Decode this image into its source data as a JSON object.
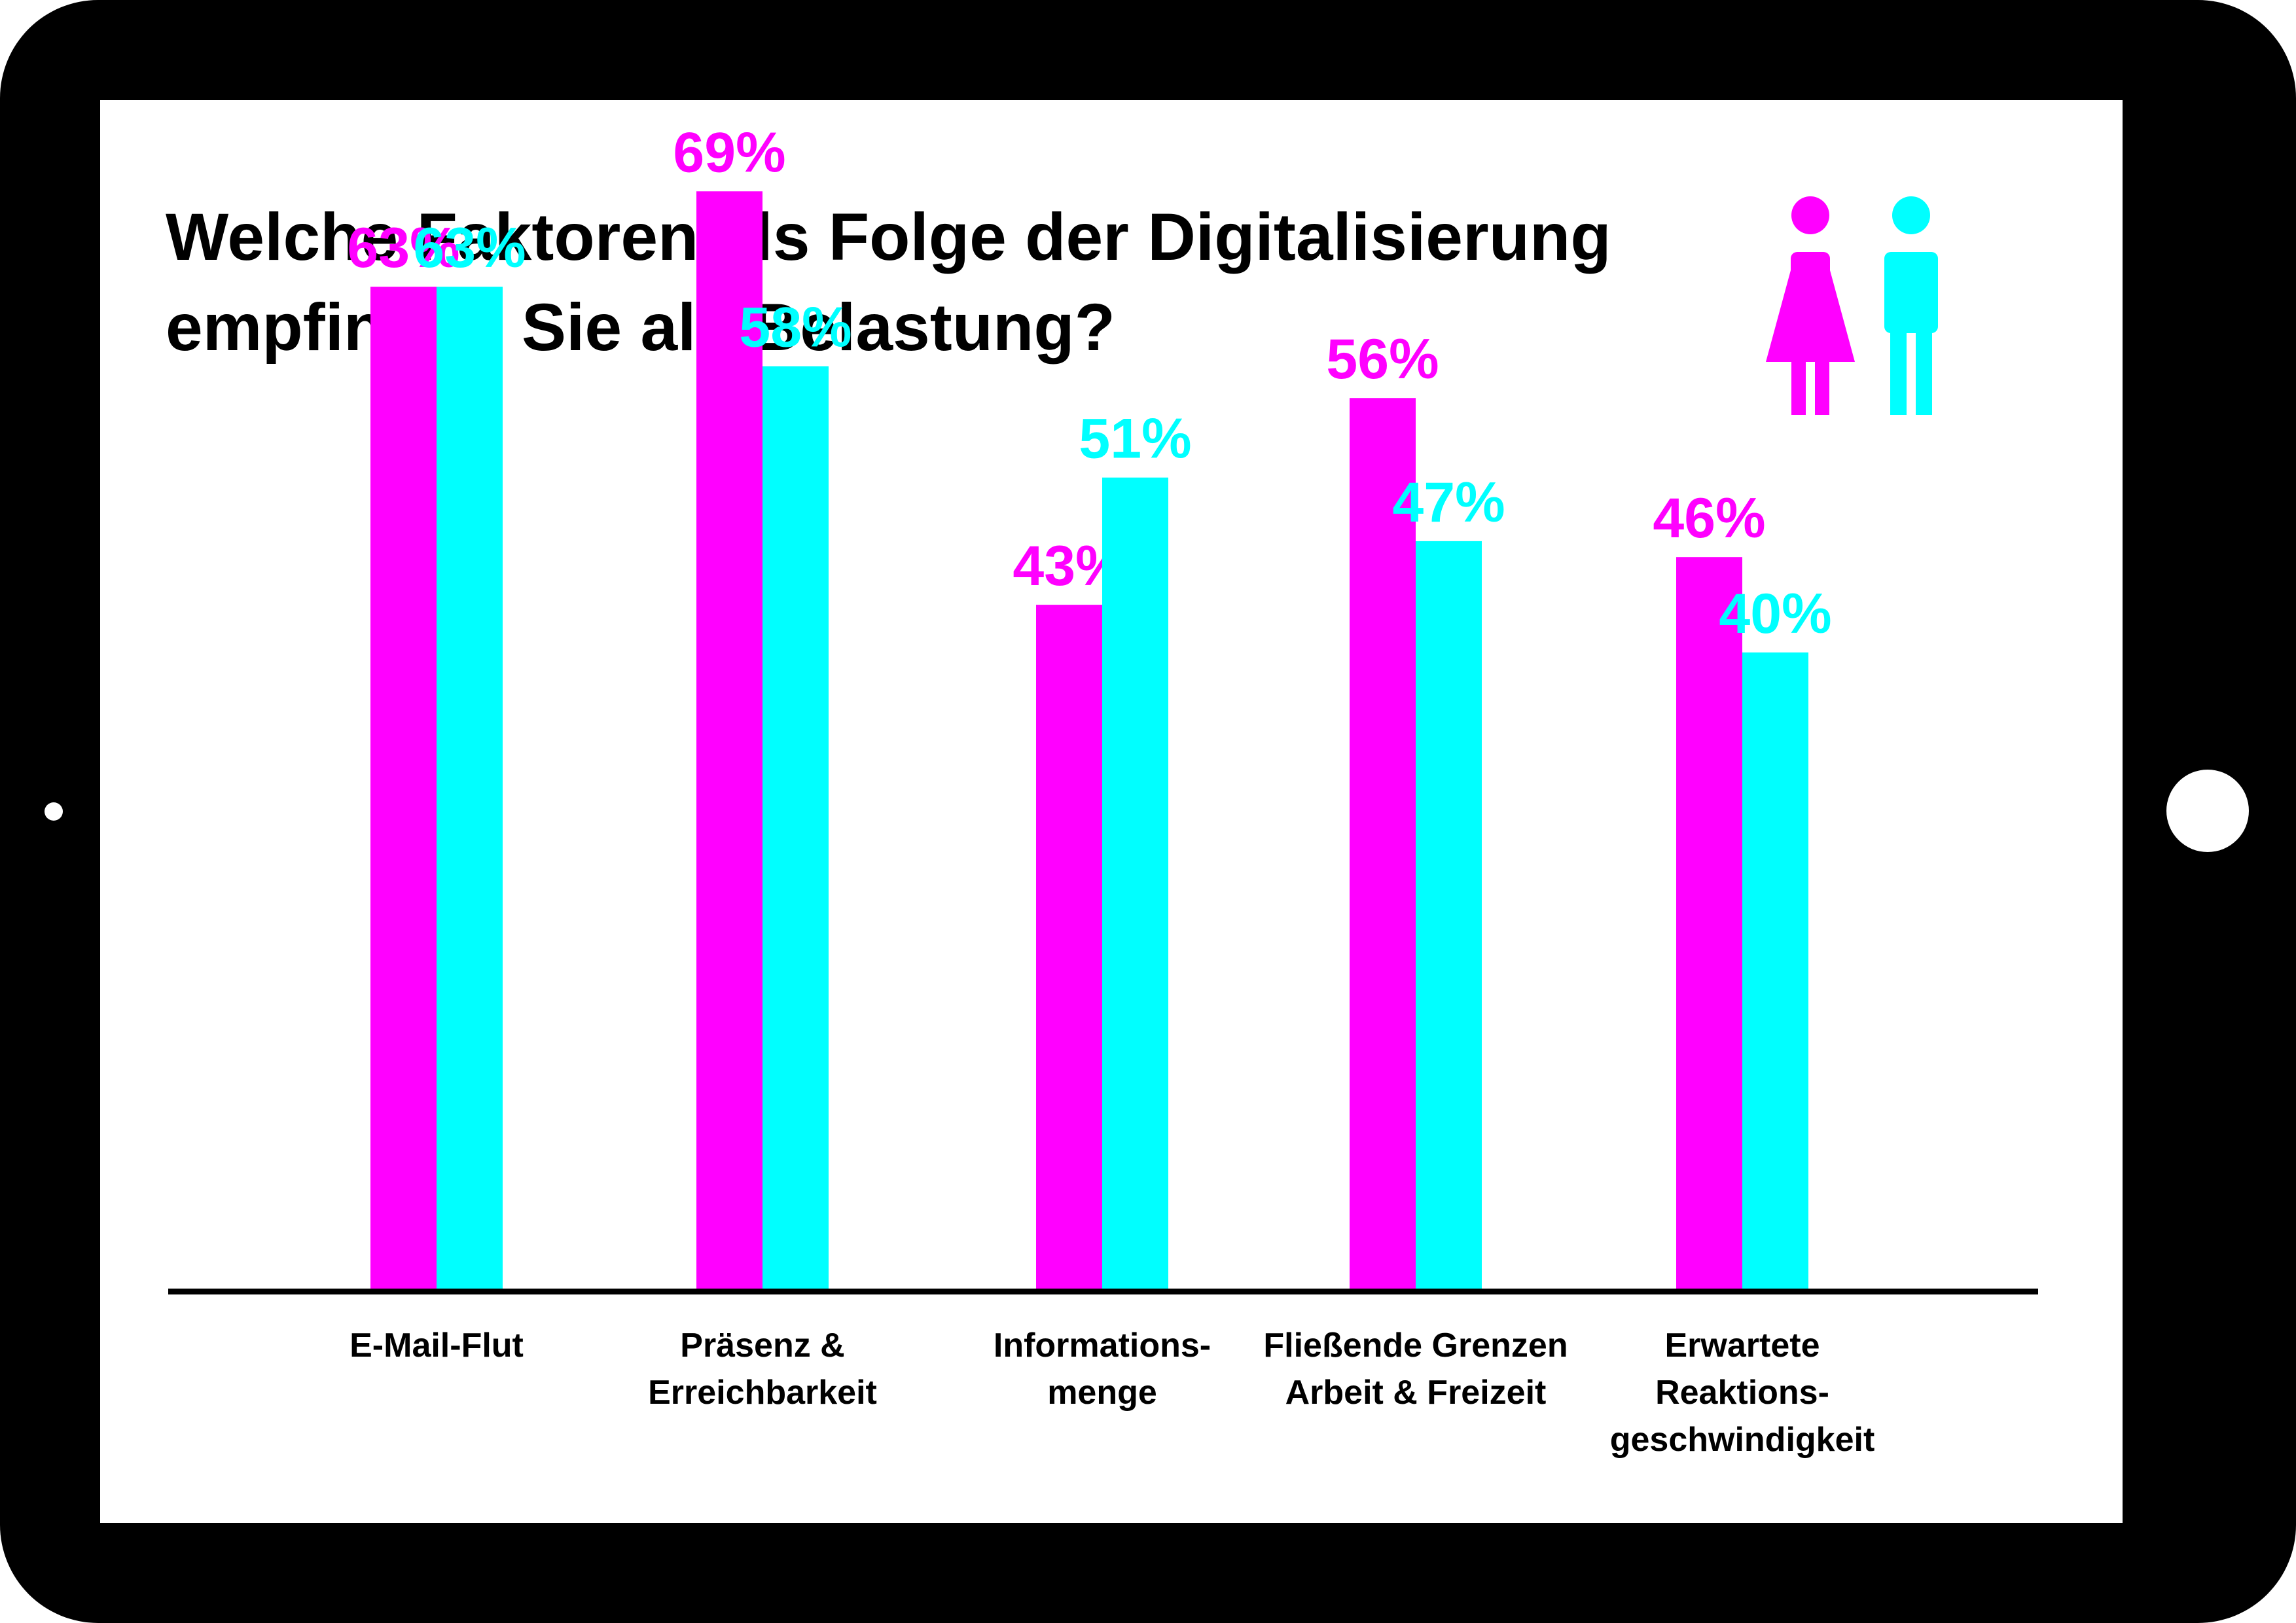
{
  "colors": {
    "frame": "#000000",
    "screen": "#ffffff",
    "female": "#ff00ff",
    "male": "#00ffff",
    "text": "#000000"
  },
  "icons": {
    "female": "woman-icon",
    "male": "man-icon"
  },
  "chart_data": {
    "type": "bar",
    "title": [
      "Welche Faktoren als Folge der Digitalisierung",
      "empfinden Sie als Belastung?"
    ],
    "categories": [
      [
        "E-Mail-Flut"
      ],
      [
        "Präsenz &",
        "Erreichbarkeit"
      ],
      [
        "Informations-",
        "menge"
      ],
      [
        "Fließende Grenzen",
        "Arbeit & Freizeit"
      ],
      [
        "Erwartete",
        "Reaktions-",
        "geschwindigkeit"
      ]
    ],
    "series": [
      {
        "icon": "woman-icon",
        "color": "#ff00ff",
        "values": [
          63,
          69,
          43,
          56,
          46
        ],
        "labels": [
          "63%",
          "69%",
          "43%",
          "56%",
          "46%"
        ]
      },
      {
        "icon": "man-icon",
        "color": "#00ffff",
        "values": [
          63,
          58,
          51,
          47,
          40
        ],
        "labels": [
          "63%",
          "58%",
          "51%",
          "47%",
          "40%"
        ]
      }
    ],
    "ylim": [
      0,
      100
    ],
    "grid": false,
    "legend": "top-right"
  }
}
